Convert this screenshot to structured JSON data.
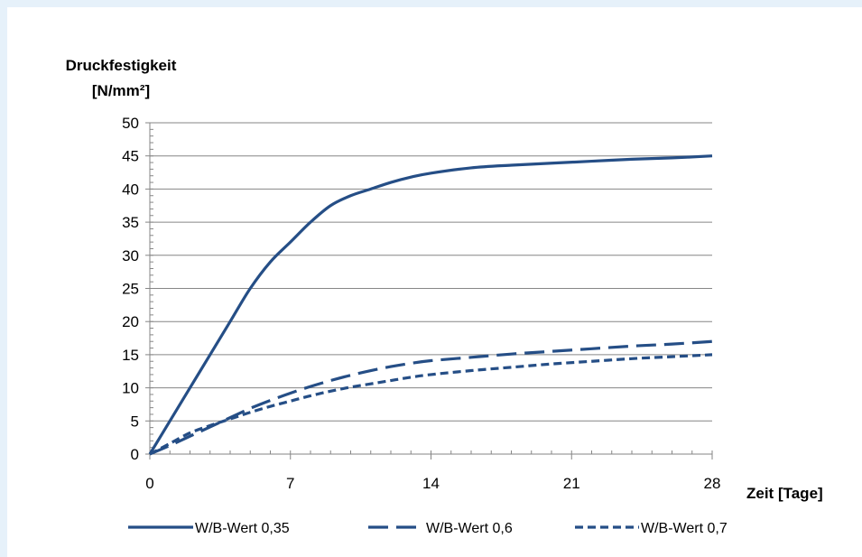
{
  "chart_data": {
    "type": "line",
    "title": "",
    "ylabel": "Druckfestigkeit [N/mm²]",
    "ylabel_lines": [
      "Druckfestigkeit",
      "[N/mm²]"
    ],
    "xlabel": "Zeit [Tage]",
    "xlim": [
      0,
      28
    ],
    "ylim": [
      0,
      50
    ],
    "xticks": [
      0,
      7,
      14,
      21,
      28
    ],
    "yticks": [
      0,
      5,
      10,
      15,
      20,
      25,
      30,
      35,
      40,
      45,
      50
    ],
    "grid": "horizontal",
    "legend_position": "bottom",
    "line_color": "#254e86",
    "series": [
      {
        "name": "W/B-Wert 0,35",
        "style": "solid",
        "x": [
          0,
          1,
          2,
          3,
          4,
          5,
          6,
          7,
          8,
          9,
          10,
          11,
          12,
          13,
          14,
          16,
          18,
          20,
          22,
          24,
          26,
          28
        ],
        "y": [
          0,
          5,
          10,
          15,
          20,
          25,
          29,
          32,
          35,
          37.5,
          39,
          40,
          41,
          41.8,
          42.4,
          43.2,
          43.6,
          43.9,
          44.2,
          44.5,
          44.7,
          45
        ]
      },
      {
        "name": "W/B-Wert 0,6",
        "style": "dash",
        "x": [
          0,
          1,
          2,
          3,
          4,
          5,
          6,
          7,
          8,
          9,
          10,
          11,
          12,
          13,
          14,
          16,
          18,
          20,
          22,
          24,
          26,
          28
        ],
        "y": [
          0,
          1.3,
          2.7,
          4.1,
          5.5,
          6.9,
          8.1,
          9.2,
          10.2,
          11.1,
          11.9,
          12.6,
          13.2,
          13.7,
          14.1,
          14.6,
          15.1,
          15.5,
          15.9,
          16.3,
          16.6,
          17
        ]
      },
      {
        "name": "W/B-Wert 0,7",
        "style": "dot",
        "x": [
          0,
          1,
          2,
          3,
          4,
          5,
          6,
          7,
          8,
          9,
          10,
          11,
          12,
          13,
          14,
          16,
          18,
          20,
          22,
          24,
          26,
          28
        ],
        "y": [
          0,
          1.6,
          3.2,
          4.3,
          5.3,
          6.3,
          7.2,
          8.0,
          8.8,
          9.5,
          10.1,
          10.6,
          11.1,
          11.6,
          12.0,
          12.6,
          13.1,
          13.6,
          14.0,
          14.4,
          14.7,
          15
        ]
      }
    ]
  }
}
